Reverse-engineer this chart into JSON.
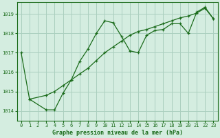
{
  "line1_x": [
    0,
    1,
    3,
    4,
    5,
    6,
    7,
    8,
    9,
    10,
    11,
    12,
    13,
    14,
    15,
    16,
    17,
    18,
    19,
    20,
    21,
    22,
    23
  ],
  "line1_y": [
    1017.0,
    1014.6,
    1014.05,
    1014.05,
    1014.9,
    1015.6,
    1016.55,
    1017.2,
    1018.0,
    1018.65,
    1018.55,
    1017.85,
    1017.1,
    1017.0,
    1017.9,
    1018.15,
    1018.2,
    1018.5,
    1018.5,
    1018.0,
    1019.1,
    1019.35,
    1018.75
  ],
  "line2_x": [
    1,
    3,
    4,
    5,
    6,
    7,
    8,
    9,
    10,
    11,
    12,
    13,
    14,
    15,
    16,
    17,
    18,
    19,
    20,
    21,
    22,
    23
  ],
  "line2_y": [
    1014.6,
    1014.8,
    1015.0,
    1015.3,
    1015.6,
    1015.9,
    1016.2,
    1016.6,
    1017.0,
    1017.3,
    1017.6,
    1017.9,
    1018.1,
    1018.2,
    1018.35,
    1018.5,
    1018.65,
    1018.8,
    1018.9,
    1019.05,
    1019.3,
    1018.75
  ],
  "line_color": "#1a6b1a",
  "bg_color": "#d4ede0",
  "grid_color": "#aacfbe",
  "xlabel": "Graphe pression niveau de la mer (hPa)",
  "ylim": [
    1013.5,
    1019.6
  ],
  "xlim": [
    -0.5,
    23.5
  ],
  "yticks": [
    1014,
    1015,
    1016,
    1017,
    1018,
    1019
  ],
  "xticks": [
    0,
    1,
    2,
    3,
    4,
    5,
    6,
    7,
    8,
    9,
    10,
    11,
    12,
    13,
    14,
    15,
    16,
    17,
    18,
    19,
    20,
    21,
    22,
    23
  ]
}
